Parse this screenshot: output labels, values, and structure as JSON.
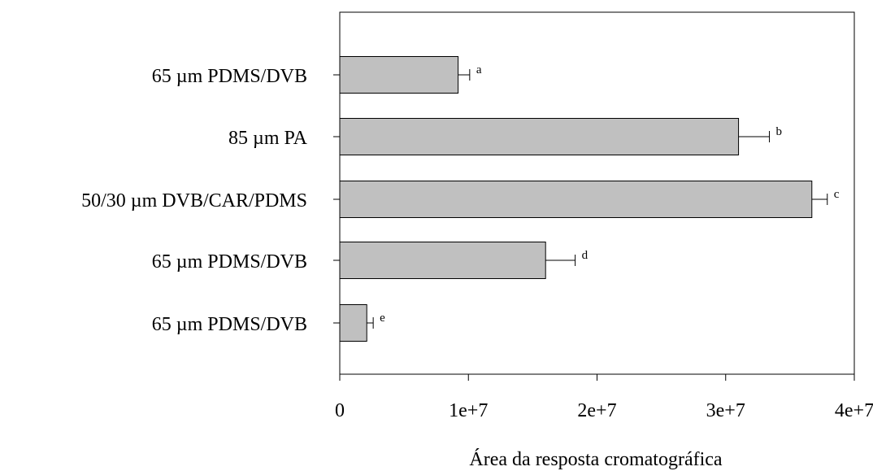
{
  "chart_data": {
    "type": "bar",
    "orientation": "horizontal",
    "title": "",
    "xlabel": "Área da resposta cromatográfica",
    "ylabel": "",
    "xlim": [
      0,
      40000000
    ],
    "xticks": [
      0,
      10000000,
      20000000,
      30000000,
      40000000
    ],
    "xtick_labels": [
      "0",
      "1e+7",
      "2e+7",
      "3e+7",
      "4e+7"
    ],
    "grid": false,
    "legend": "none",
    "categories": [
      "65 µm PDMS/DVB",
      "85 µm PA",
      "50/30 µm DVB/CAR/PDMS",
      "65 µm PDMS/DVB",
      "65 µm PDMS/DVB"
    ],
    "values": [
      9200000,
      31000000,
      36700000,
      16000000,
      2100000
    ],
    "errors": [
      900000,
      2400000,
      1200000,
      2300000,
      500000
    ],
    "significance_labels": [
      "a",
      "b",
      "c",
      "d",
      "e"
    ],
    "bar_color": "#c0c0c0",
    "bar_edge_color": "#000000"
  }
}
